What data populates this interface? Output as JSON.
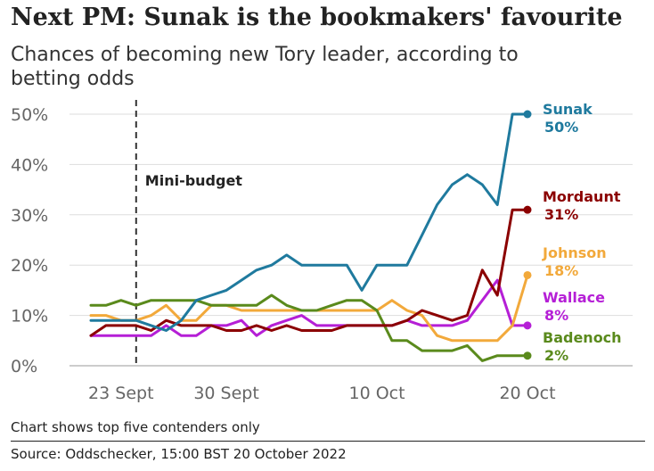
{
  "title": "Next PM: Sunak is the bookmakers' favourite",
  "subtitle": "Chances of becoming new Tory leader, according to betting odds",
  "note": "Chart shows top five contenders only",
  "source": "Source: Oddschecker, 15:00 BST 20 October 2022",
  "chart_data": {
    "type": "line",
    "x": [
      "21 Sept",
      "22 Sept",
      "23 Sept",
      "24 Sept",
      "25 Sept",
      "26 Sept",
      "27 Sept",
      "28 Sept",
      "29 Sept",
      "30 Sept",
      "1 Oct",
      "2 Oct",
      "3 Oct",
      "4 Oct",
      "5 Oct",
      "6 Oct",
      "7 Oct",
      "8 Oct",
      "9 Oct",
      "10 Oct",
      "11 Oct",
      "12 Oct",
      "13 Oct",
      "14 Oct",
      "15 Oct",
      "16 Oct",
      "17 Oct",
      "18 Oct",
      "19 Oct",
      "20 Oct"
    ],
    "x_ticks": [
      "23 Sept",
      "30 Sept",
      "10 Oct",
      "20 Oct"
    ],
    "y_ticks": [
      "0%",
      "10%",
      "20%",
      "30%",
      "40%",
      "50%"
    ],
    "ylim": [
      0,
      50
    ],
    "grid": true,
    "annotation": {
      "label": "Mini-budget",
      "x": "23 Sept"
    },
    "series": [
      {
        "name": "Wallace",
        "end_label": "8%",
        "color": "#b51fd6",
        "values": [
          6,
          6,
          6,
          6,
          6,
          8,
          6,
          6,
          8,
          8,
          9,
          6,
          8,
          9,
          10,
          8,
          8,
          8,
          8,
          8,
          8,
          9,
          8,
          8,
          8,
          9,
          13,
          17,
          8,
          8
        ]
      },
      {
        "name": "Johnson",
        "end_label": "18%",
        "color": "#f2a93b",
        "values": [
          10,
          10,
          9,
          9,
          10,
          12,
          9,
          9,
          12,
          12,
          11,
          11,
          11,
          11,
          11,
          11,
          11,
          11,
          11,
          11,
          13,
          11,
          10,
          6,
          5,
          5,
          5,
          5,
          8,
          18
        ]
      },
      {
        "name": "Badenoch",
        "end_label": "2%",
        "color": "#5a8a1c",
        "values": [
          12,
          12,
          13,
          12,
          13,
          13,
          13,
          13,
          12,
          12,
          12,
          12,
          14,
          12,
          11,
          11,
          12,
          13,
          13,
          11,
          5,
          5,
          3,
          3,
          3,
          4,
          1,
          2,
          2,
          2
        ]
      },
      {
        "name": "Mordaunt",
        "end_label": "31%",
        "color": "#8b0000",
        "values": [
          6,
          8,
          8,
          8,
          7,
          9,
          8,
          8,
          8,
          7,
          7,
          8,
          7,
          8,
          7,
          7,
          7,
          8,
          8,
          8,
          8,
          9,
          11,
          10,
          9,
          10,
          19,
          14,
          31,
          31
        ]
      },
      {
        "name": "Sunak",
        "end_label": "50%",
        "color": "#1f7a9e",
        "values": [
          9,
          9,
          9,
          9,
          8,
          7,
          9,
          13,
          14,
          15,
          17,
          19,
          20,
          22,
          20,
          20,
          20,
          20,
          15,
          20,
          20,
          20,
          26,
          32,
          36,
          38,
          36,
          32,
          50,
          50
        ]
      }
    ]
  }
}
